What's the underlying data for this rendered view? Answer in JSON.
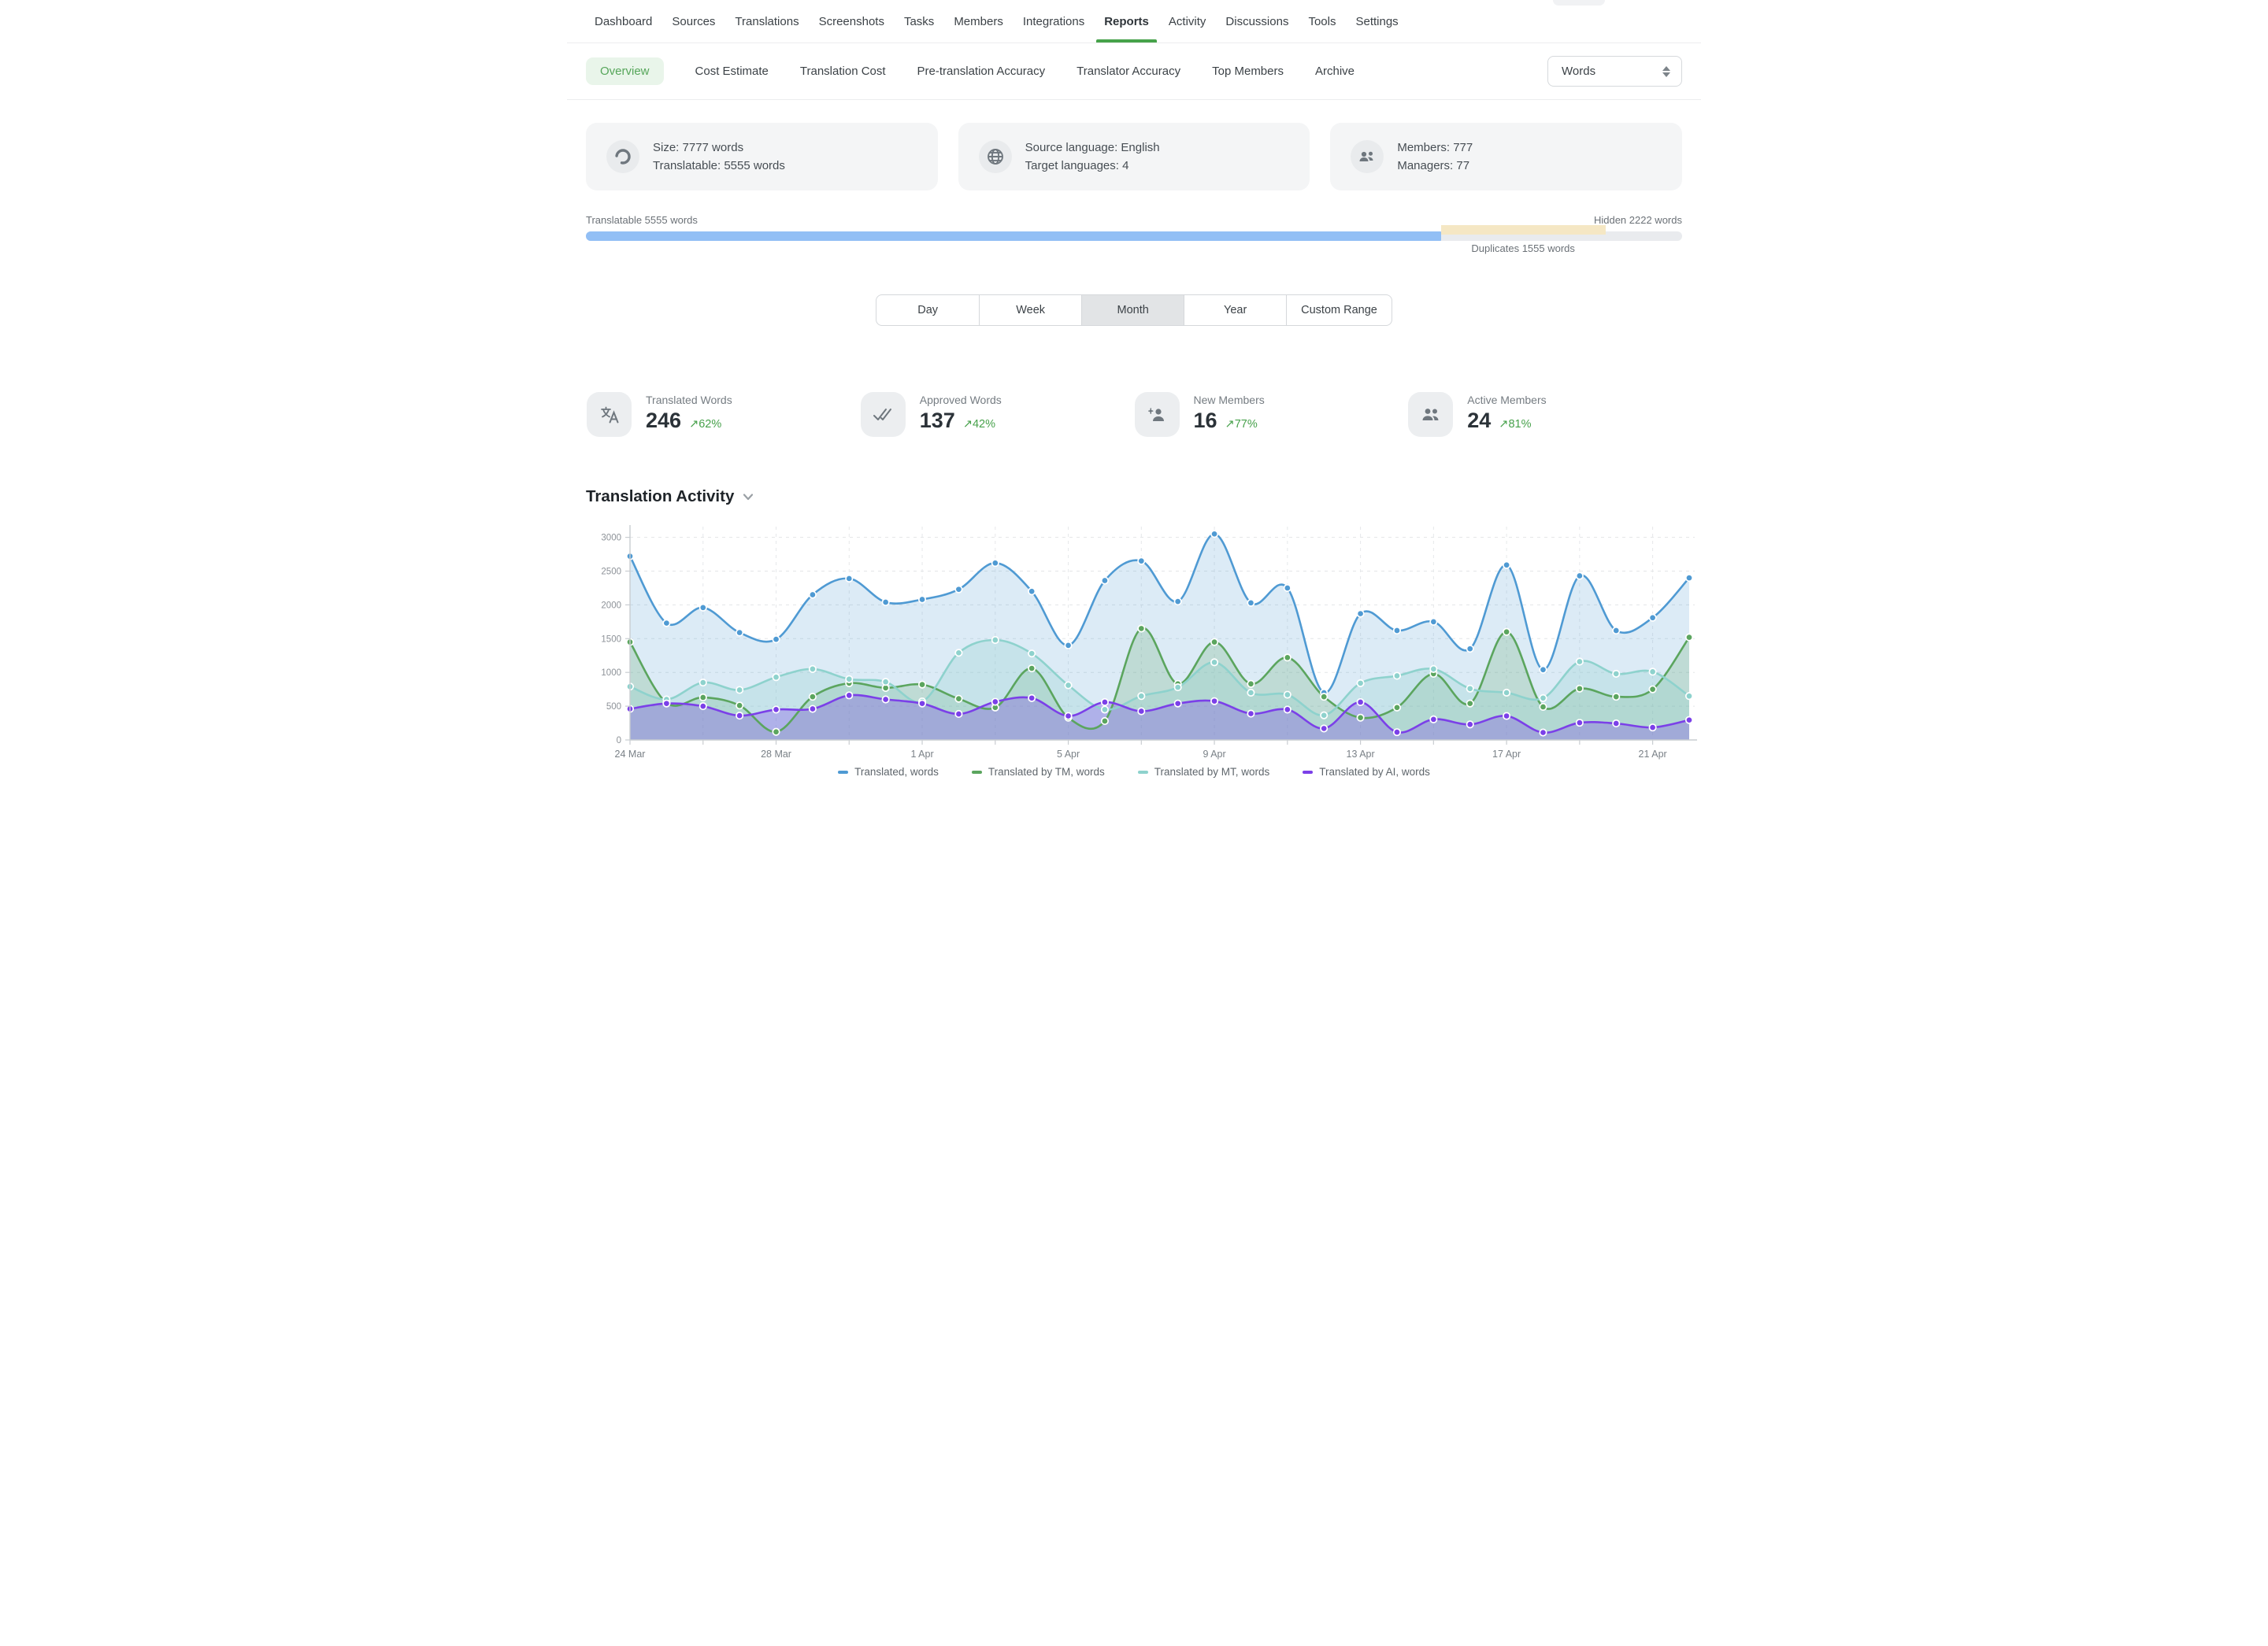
{
  "nav": {
    "items": [
      {
        "label": "Dashboard",
        "active": false
      },
      {
        "label": "Sources",
        "active": false
      },
      {
        "label": "Translations",
        "active": false
      },
      {
        "label": "Screenshots",
        "active": false
      },
      {
        "label": "Tasks",
        "active": false
      },
      {
        "label": "Members",
        "active": false
      },
      {
        "label": "Integrations",
        "active": false
      },
      {
        "label": "Reports",
        "active": true
      },
      {
        "label": "Activity",
        "active": false
      },
      {
        "label": "Discussions",
        "active": false
      },
      {
        "label": "Tools",
        "active": false
      },
      {
        "label": "Settings",
        "active": false
      }
    ]
  },
  "subnav": {
    "items": [
      {
        "label": "Overview",
        "active": true
      },
      {
        "label": "Cost Estimate",
        "active": false
      },
      {
        "label": "Translation Cost",
        "active": false
      },
      {
        "label": "Pre-translation Accuracy",
        "active": false
      },
      {
        "label": "Translator Accuracy",
        "active": false
      },
      {
        "label": "Top Members",
        "active": false
      },
      {
        "label": "Archive",
        "active": false
      }
    ],
    "unit_select": {
      "value": "Words"
    }
  },
  "summary_cards": [
    {
      "icon": "project-size-ring-icon",
      "lines": [
        "Size: 7777 words",
        "Translatable: 5555 words"
      ]
    },
    {
      "icon": "globe-icon",
      "lines": [
        "Source language: English",
        "Target languages: 4"
      ]
    },
    {
      "icon": "members-icon",
      "lines": [
        "Members: 777",
        "Managers: 77"
      ]
    }
  ],
  "breakdown": {
    "left_label": "Translatable 5555 words",
    "right_label": "Hidden 2222 words",
    "duplicates_label": "Duplicates 1555 words",
    "translatable_pct": 78,
    "duplicates_start_pct": 78,
    "duplicates_width_pct": 15,
    "bar_color": "#92bff5",
    "track_color": "#e9ebee",
    "duplicates_color": "#f5e7c4"
  },
  "range_tabs": {
    "options": [
      "Day",
      "Week",
      "Month",
      "Year",
      "Custom Range"
    ],
    "selected": "Month"
  },
  "stats": [
    {
      "icon": "translate-icon",
      "label": "Translated Words",
      "value": "246",
      "delta": "↗62%"
    },
    {
      "icon": "double-check-icon",
      "label": "Approved Words",
      "value": "137",
      "delta": "↗42%"
    },
    {
      "icon": "person-add-icon",
      "label": "New Members",
      "value": "16",
      "delta": "↗77%"
    },
    {
      "icon": "people-icon",
      "label": "Active Members",
      "value": "24",
      "delta": "↗81%"
    }
  ],
  "activity": {
    "title": "Translation Activity",
    "chart_data": {
      "type": "line",
      "subtype": "smooth-area",
      "categories": [
        "24 Mar",
        "25 Mar",
        "26 Mar",
        "27 Mar",
        "28 Mar",
        "29 Mar",
        "30 Mar",
        "31 Mar",
        "1 Apr",
        "2 Apr",
        "3 Apr",
        "4 Apr",
        "5 Apr",
        "6 Apr",
        "7 Apr",
        "8 Apr",
        "9 Apr",
        "10 Apr",
        "11 Apr",
        "12 Apr",
        "13 Apr",
        "14 Apr",
        "15 Apr",
        "16 Apr",
        "17 Apr",
        "18 Apr",
        "19 Apr",
        "20 Apr",
        "21 Apr",
        "22 Apr"
      ],
      "x_tick_labels": [
        "24 Mar",
        "28 Mar",
        "1 Apr",
        "5 Apr",
        "9 Apr",
        "13 Apr",
        "17 Apr",
        "21 Apr"
      ],
      "x_tick_indices": [
        0,
        4,
        8,
        12,
        16,
        20,
        24,
        28
      ],
      "ylim": [
        0,
        3000
      ],
      "yticks": [
        0,
        500,
        1000,
        1500,
        2000,
        2500,
        3000
      ],
      "grid": true,
      "legend_position": "bottom",
      "series": [
        {
          "name": "Translated, words",
          "color": "#4f9ad3",
          "fill_opacity": 0.2,
          "values": [
            2720,
            1730,
            1960,
            1590,
            1490,
            2150,
            2390,
            2040,
            2080,
            2230,
            2620,
            2200,
            1400,
            2360,
            2650,
            2050,
            3050,
            2030,
            2250,
            700,
            1870,
            1620,
            1750,
            1350,
            2590,
            1040,
            2430,
            1620,
            1810,
            2400
          ]
        },
        {
          "name": "Translated by TM, words",
          "color": "#5ba55e",
          "fill_opacity": 0.22,
          "values": [
            1450,
            550,
            630,
            510,
            120,
            640,
            840,
            770,
            820,
            610,
            480,
            1060,
            330,
            280,
            1650,
            830,
            1450,
            830,
            1220,
            640,
            330,
            480,
            980,
            540,
            1600,
            490,
            760,
            640,
            750,
            1520
          ]
        },
        {
          "name": "Translated by MT, words",
          "color": "#8ed2cd",
          "fill_opacity": 0.28,
          "values": [
            790,
            600,
            850,
            740,
            930,
            1050,
            900,
            860,
            570,
            1290,
            1480,
            1280,
            810,
            450,
            650,
            780,
            1150,
            700,
            670,
            365,
            840,
            950,
            1050,
            760,
            700,
            620,
            1160,
            980,
            1010,
            650
          ]
        },
        {
          "name": "Translated by AI, words",
          "color": "#7b40e8",
          "fill_opacity": 0.3,
          "values": [
            460,
            540,
            500,
            360,
            450,
            460,
            660,
            600,
            540,
            385,
            565,
            620,
            355,
            560,
            425,
            540,
            575,
            390,
            450,
            170,
            560,
            115,
            305,
            230,
            355,
            110,
            255,
            245,
            185,
            295
          ]
        }
      ]
    }
  }
}
